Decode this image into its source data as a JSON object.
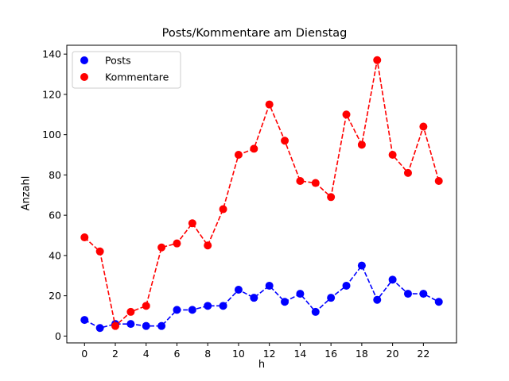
{
  "chart_data": {
    "type": "line",
    "title": "Posts/Kommentare am Dienstag",
    "xlabel": "h",
    "ylabel": "Anzahl",
    "x": [
      0,
      1,
      2,
      3,
      4,
      5,
      6,
      7,
      8,
      9,
      10,
      11,
      12,
      13,
      14,
      15,
      16,
      17,
      18,
      19,
      20,
      21,
      22,
      23
    ],
    "xticks": [
      0,
      2,
      4,
      6,
      8,
      10,
      12,
      14,
      16,
      18,
      20,
      22
    ],
    "yticks": [
      0,
      20,
      40,
      60,
      80,
      100,
      120,
      140
    ],
    "xlim": [
      -1.15,
      24.15
    ],
    "ylim": [
      -3.4,
      144.4
    ],
    "grid": false,
    "legend_position": "upper left",
    "series": [
      {
        "name": "Posts",
        "color": "#0000ff",
        "style": "dashed",
        "marker": "o",
        "values": [
          8,
          4,
          6,
          6,
          5,
          5,
          13,
          13,
          15,
          15,
          23,
          19,
          25,
          17,
          21,
          12,
          19,
          25,
          35,
          18,
          28,
          21,
          21,
          17
        ]
      },
      {
        "name": "Kommentare",
        "color": "#ff0000",
        "style": "dashed",
        "marker": "o",
        "values": [
          49,
          42,
          5,
          12,
          15,
          44,
          46,
          56,
          45,
          63,
          90,
          93,
          115,
          97,
          77,
          76,
          69,
          110,
          95,
          137,
          90,
          81,
          104,
          77
        ]
      }
    ]
  }
}
